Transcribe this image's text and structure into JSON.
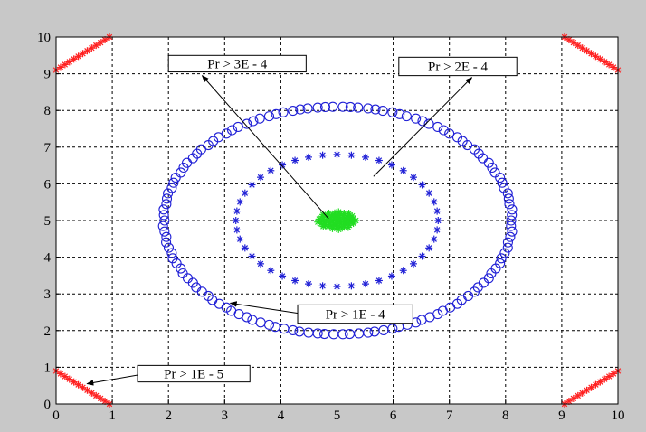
{
  "chart_data": {
    "type": "scatter",
    "title": "",
    "xlabel": "",
    "ylabel": "",
    "xlim": [
      0,
      10
    ],
    "ylim": [
      0,
      10
    ],
    "x_ticks": [
      "0",
      "1",
      "2",
      "3",
      "4",
      "5",
      "6",
      "7",
      "8",
      "9",
      "10"
    ],
    "y_ticks": [
      "0",
      "1",
      "2",
      "3",
      "4",
      "5",
      "6",
      "7",
      "8",
      "9",
      "10"
    ],
    "grid": true,
    "colors": {
      "figure_background": "#c8c8c8",
      "axes_background": "#ffffff",
      "outer_ring": "#1f1fd6",
      "inner_ring": "#1f1fd6",
      "center": "#22dd22",
      "corners": "#ff2020",
      "grid": "#000000"
    },
    "series": [
      {
        "marker": "circle",
        "color": "#1f1fd6",
        "shape": "ellipse",
        "center": [
          5,
          5
        ],
        "radii": [
          3.1,
          3.1
        ]
      },
      {
        "marker": "asterisk",
        "color": "#1f1fd6",
        "shape": "ellipse",
        "center": [
          5,
          5
        ],
        "radii": [
          1.8,
          1.8
        ]
      },
      {
        "marker": "asterisk",
        "color": "#22dd22",
        "shape": "cluster",
        "center": [
          5,
          5
        ],
        "radii": [
          0.35,
          0.25
        ]
      },
      {
        "marker": "asterisk",
        "color": "#ff2020",
        "shape": "corners",
        "segments": [
          [
            [
              0,
              9.1
            ],
            [
              0.95,
              10
            ]
          ],
          [
            [
              9.05,
              10
            ],
            [
              10,
              9.1
            ]
          ],
          [
            [
              0,
              0.9
            ],
            [
              0.95,
              0
            ]
          ],
          [
            [
              9.05,
              0
            ],
            [
              10,
              0.9
            ]
          ]
        ]
      }
    ],
    "annotations": [
      {
        "text": "Pr > 3E - 4",
        "box": [
          2.0,
          9.5,
          4.45,
          9.05
        ],
        "arrow_from": [
          4.85,
          5.05
        ],
        "arrow_to": [
          2.6,
          8.95
        ]
      },
      {
        "text": "Pr > 2E - 4",
        "box": [
          6.1,
          9.45,
          8.2,
          8.95
        ],
        "arrow_from": [
          5.65,
          6.2
        ],
        "arrow_to": [
          7.4,
          8.9
        ]
      },
      {
        "text": "Pr > 1E - 4",
        "box": [
          4.3,
          2.7,
          6.35,
          2.2
        ],
        "arrow_from": [
          4.4,
          2.45
        ],
        "arrow_to": [
          3.1,
          2.75
        ]
      },
      {
        "text": "Pr > 1E - 5",
        "box": [
          1.45,
          1.05,
          3.45,
          0.6
        ],
        "arrow_from": [
          1.5,
          0.8
        ],
        "arrow_to": [
          0.55,
          0.55
        ]
      }
    ]
  }
}
